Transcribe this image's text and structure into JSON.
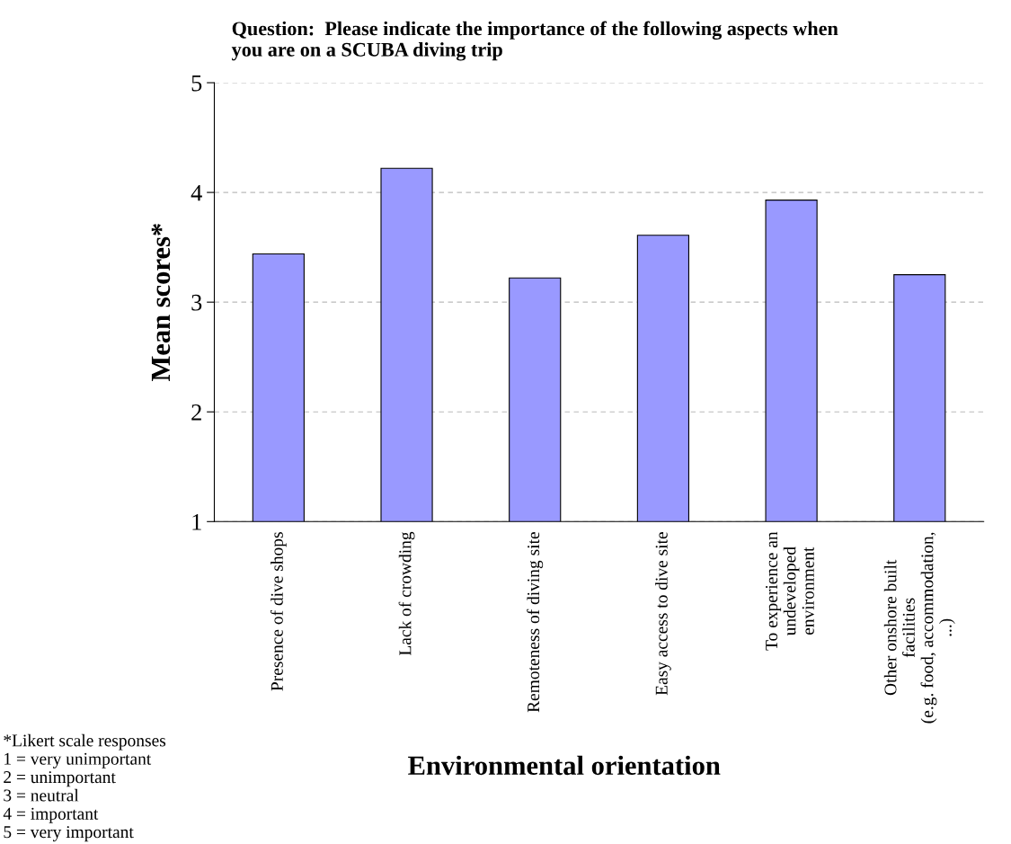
{
  "chart_data": {
    "type": "bar",
    "title": "Question:  Please indicate the importance of the following aspects when\nyou are on a SCUBA diving trip",
    "xlabel": "Environmental orientation",
    "ylabel": "Mean scores*",
    "categories": [
      "Presence of dive shops",
      "Lack of crowding",
      "Remoteness of diving site",
      "Easy access to dive site",
      "To experience an\nundeveloped\nenvironment",
      "Other onshore built\nfacilities\n(e.g. food, accommodation,\n...)"
    ],
    "values": [
      3.44,
      4.22,
      3.22,
      3.61,
      3.93,
      3.25
    ],
    "color": "#9999ff",
    "ylim": [
      1,
      5
    ],
    "yticks": [
      1,
      2,
      3,
      4,
      5
    ],
    "grid": "y",
    "legend": false,
    "annotations": [
      "*Likert scale responses\n1 = very unimportant\n2 = unimportant\n3 = neutral\n4 = important\n5 = very important"
    ]
  }
}
